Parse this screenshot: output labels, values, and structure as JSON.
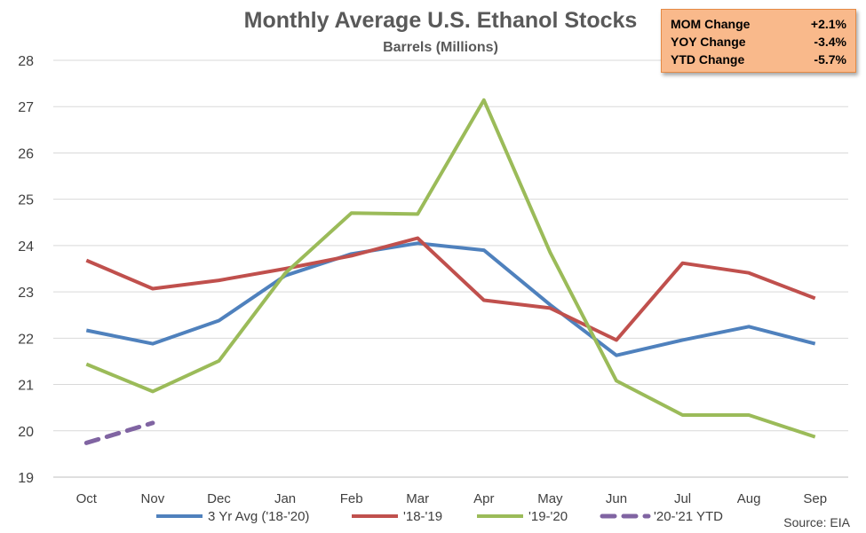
{
  "chart_data": {
    "type": "line",
    "title": "Monthly Average U.S. Ethanol Stocks",
    "subtitle": "Barrels (Millions)",
    "categories": [
      "Oct",
      "Nov",
      "Dec",
      "Jan",
      "Feb",
      "Mar",
      "Apr",
      "May",
      "Jun",
      "Jul",
      "Aug",
      "Sep"
    ],
    "ylim": [
      19,
      28
    ],
    "yticks": [
      19,
      20,
      21,
      22,
      23,
      24,
      25,
      26,
      27,
      28
    ],
    "grid": "horizontal",
    "legend_position": "bottom",
    "series": [
      {
        "name": "3 Yr Avg ('18-'20)",
        "color": "#4f81bd",
        "dashed": false,
        "values": [
          22.17,
          21.88,
          22.38,
          23.35,
          23.82,
          24.05,
          23.9,
          22.72,
          21.63,
          21.96,
          22.25,
          21.88
        ]
      },
      {
        "name": "'18-'19",
        "color": "#c0504d",
        "dashed": false,
        "values": [
          23.68,
          23.07,
          23.25,
          23.5,
          23.78,
          24.16,
          22.82,
          22.65,
          21.96,
          23.62,
          23.41,
          22.86
        ]
      },
      {
        "name": "'19-'20",
        "color": "#9bbb59",
        "dashed": false,
        "values": [
          21.44,
          20.85,
          21.51,
          23.4,
          24.7,
          24.68,
          27.14,
          23.85,
          21.08,
          20.34,
          20.34,
          19.87
        ]
      },
      {
        "name": "'20-'21 YTD",
        "color": "#8064a2",
        "dashed": true,
        "values": [
          19.74,
          20.17,
          null,
          null,
          null,
          null,
          null,
          null,
          null,
          null,
          null,
          null
        ]
      }
    ]
  },
  "stats": [
    {
      "label": "MOM Change",
      "value": "+2.1%"
    },
    {
      "label": "YOY Change",
      "value": "-3.4%"
    },
    {
      "label": "YTD Change",
      "value": "-5.7%"
    }
  ],
  "source": "Source: EIA"
}
